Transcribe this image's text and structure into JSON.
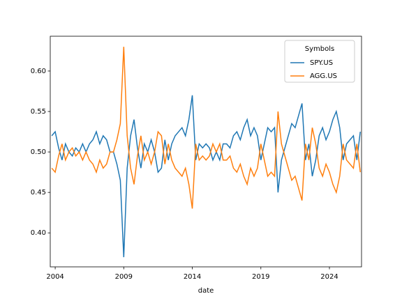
{
  "chart_data": {
    "type": "line",
    "x_label": "date",
    "legend_title": "Symbols",
    "legend": "upper right",
    "x": [
      2003.75,
      2004,
      2004.25,
      2004.5,
      2004.75,
      2005,
      2005.25,
      2005.5,
      2005.75,
      2006,
      2006.25,
      2006.5,
      2006.75,
      2007,
      2007.25,
      2007.5,
      2007.75,
      2008,
      2008.25,
      2008.5,
      2008.75,
      2009,
      2009.25,
      2009.5,
      2009.75,
      2010,
      2010.25,
      2010.5,
      2010.75,
      2011,
      2011.25,
      2011.5,
      2011.75,
      2012,
      2012.25,
      2012.5,
      2012.75,
      2013,
      2013.25,
      2013.5,
      2013.75,
      2014,
      2014.25,
      2014.5,
      2014.75,
      2015,
      2015.25,
      2015.5,
      2015.75,
      2016,
      2016.25,
      2016.5,
      2016.75,
      2017,
      2017.25,
      2017.5,
      2017.75,
      2018,
      2018.25,
      2018.5,
      2018.75,
      2019,
      2019.25,
      2019.5,
      2019.75,
      2020,
      2020.25,
      2020.5,
      2020.75,
      2021,
      2021.25,
      2021.5,
      2021.75,
      2022,
      2022.25,
      2022.5,
      2022.75,
      2023,
      2023.25,
      2023.5,
      2023.75,
      2024,
      2024.25,
      2024.5,
      2024.75,
      2025,
      2025.25,
      2025.5,
      2025.75,
      2026,
      2026.25
    ],
    "series": [
      {
        "name": "SPY.US",
        "color": "#1f77b4",
        "values": [
          0.52,
          0.525,
          0.505,
          0.49,
          0.51,
          0.5,
          0.495,
          0.505,
          0.5,
          0.51,
          0.5,
          0.51,
          0.515,
          0.525,
          0.51,
          0.52,
          0.515,
          0.5,
          0.5,
          0.485,
          0.465,
          0.37,
          0.48,
          0.52,
          0.54,
          0.505,
          0.48,
          0.51,
          0.5,
          0.515,
          0.5,
          0.475,
          0.48,
          0.515,
          0.49,
          0.51,
          0.52,
          0.525,
          0.53,
          0.52,
          0.54,
          0.57,
          0.49,
          0.51,
          0.505,
          0.51,
          0.505,
          0.49,
          0.5,
          0.49,
          0.51,
          0.51,
          0.505,
          0.52,
          0.525,
          0.515,
          0.53,
          0.54,
          0.52,
          0.53,
          0.52,
          0.49,
          0.51,
          0.53,
          0.525,
          0.53,
          0.45,
          0.49,
          0.505,
          0.52,
          0.535,
          0.53,
          0.545,
          0.56,
          0.49,
          0.51,
          0.47,
          0.49,
          0.52,
          0.53,
          0.515,
          0.525,
          0.54,
          0.55,
          0.53,
          0.49,
          0.51,
          0.515,
          0.52,
          0.49,
          0.525
        ]
      },
      {
        "name": "AGG.US",
        "color": "#ff7f0e",
        "values": [
          0.48,
          0.475,
          0.495,
          0.51,
          0.49,
          0.5,
          0.505,
          0.495,
          0.5,
          0.49,
          0.5,
          0.49,
          0.485,
          0.475,
          0.49,
          0.48,
          0.485,
          0.5,
          0.5,
          0.515,
          0.535,
          0.63,
          0.52,
          0.48,
          0.46,
          0.495,
          0.52,
          0.49,
          0.5,
          0.485,
          0.5,
          0.525,
          0.52,
          0.485,
          0.51,
          0.49,
          0.48,
          0.475,
          0.47,
          0.48,
          0.46,
          0.43,
          0.51,
          0.49,
          0.495,
          0.49,
          0.495,
          0.51,
          0.5,
          0.51,
          0.49,
          0.49,
          0.495,
          0.48,
          0.475,
          0.485,
          0.47,
          0.46,
          0.48,
          0.47,
          0.48,
          0.51,
          0.49,
          0.47,
          0.475,
          0.47,
          0.55,
          0.51,
          0.495,
          0.48,
          0.465,
          0.47,
          0.455,
          0.44,
          0.51,
          0.49,
          0.53,
          0.51,
          0.48,
          0.47,
          0.485,
          0.475,
          0.46,
          0.45,
          0.47,
          0.51,
          0.49,
          0.485,
          0.48,
          0.51,
          0.475
        ]
      }
    ],
    "xlim": [
      2003.64,
      2026.34
    ],
    "xticks": [
      2004,
      2009,
      2014,
      2019,
      2024
    ],
    "ylim": [
      0.358,
      0.643
    ],
    "yticks": [
      {
        "value": 0.4,
        "label": "0.40"
      },
      {
        "value": 0.45,
        "label": "0.45"
      },
      {
        "value": 0.5,
        "label": "0.50"
      },
      {
        "value": 0.55,
        "label": "0.55"
      },
      {
        "value": 0.6,
        "label": "0.60"
      }
    ]
  }
}
